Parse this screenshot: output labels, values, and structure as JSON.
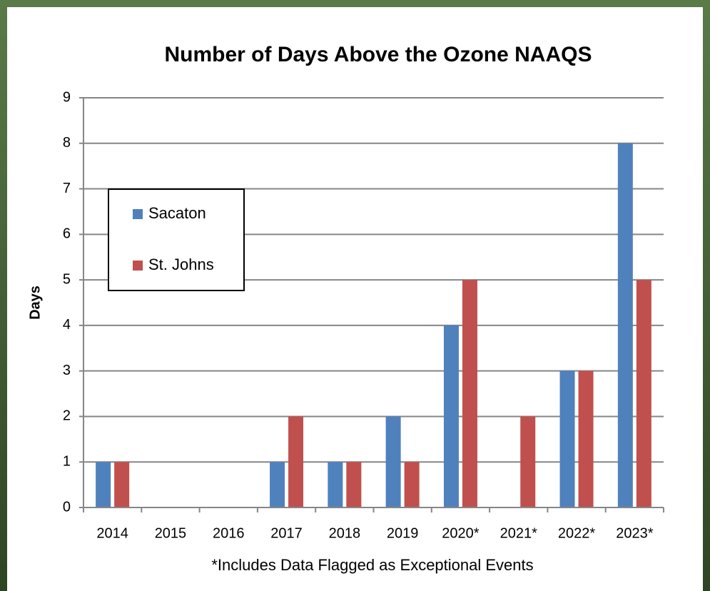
{
  "chart_data": {
    "type": "bar",
    "title": "Number of Days Above the Ozone NAAQS",
    "y_label": "Days",
    "x_label": "*Includes Data Flagged as Exceptional Events",
    "categories": [
      "2014",
      "2015",
      "2016",
      "2017",
      "2018",
      "2019",
      "2020*",
      "2021*",
      "2022*",
      "2023*"
    ],
    "series": [
      {
        "name": "Sacaton",
        "color": "#4f81bd",
        "values": [
          1,
          0,
          0,
          1,
          1,
          2,
          4,
          0,
          3,
          8
        ]
      },
      {
        "name": "St. Johns",
        "color": "#c0504d",
        "values": [
          1,
          0,
          0,
          2,
          1,
          1,
          5,
          2,
          3,
          5
        ]
      }
    ],
    "ylim": [
      0,
      9
    ],
    "yticks": [
      0,
      1,
      2,
      3,
      4,
      5,
      6,
      7,
      8,
      9
    ],
    "grid": true,
    "legend": "upper left"
  }
}
